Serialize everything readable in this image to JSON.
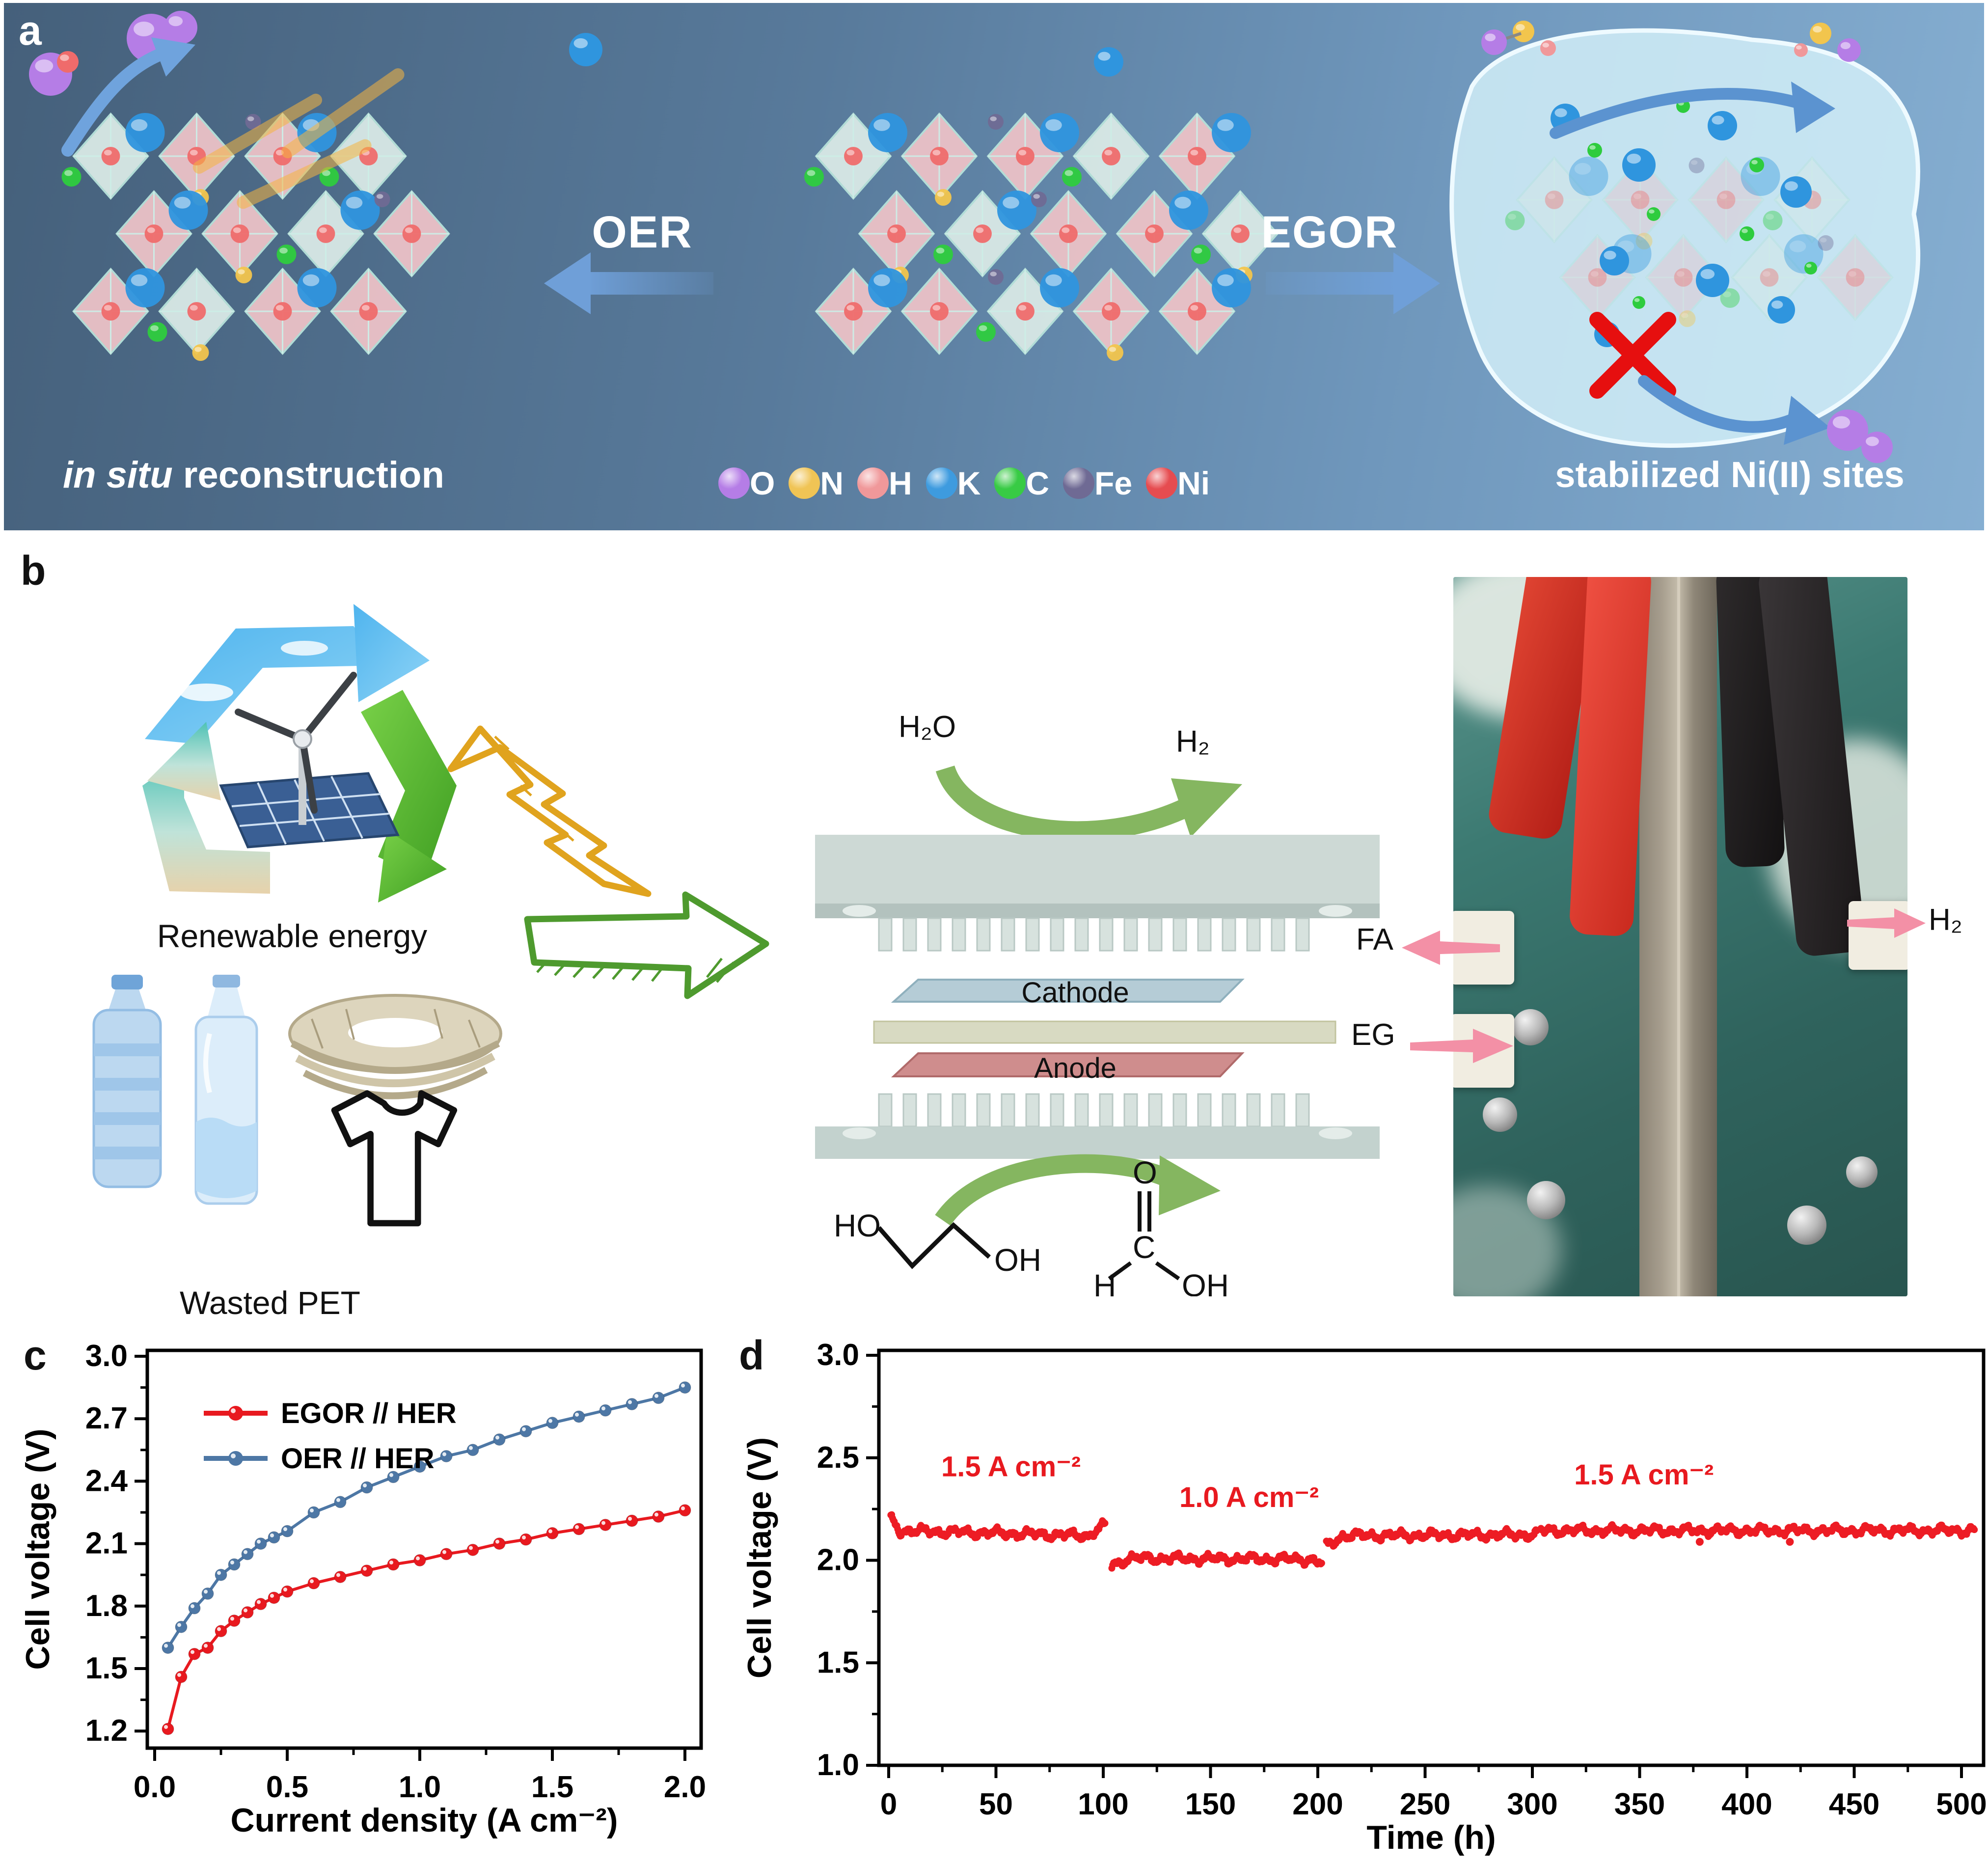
{
  "panel_a": {
    "label": "a",
    "oer_label": "OER",
    "egor_label": "EGOR",
    "left_caption_italic": "in situ",
    "left_caption_rest": " reconstruction",
    "right_caption": "stabilized Ni(II) sites",
    "atom_legend": [
      {
        "symbol": "O",
        "color": "#b57de6"
      },
      {
        "symbol": "N",
        "color": "#f0c455"
      },
      {
        "symbol": "H",
        "color": "#f0989a"
      },
      {
        "symbol": "K",
        "color": "#3e9bdf"
      },
      {
        "symbol": "C",
        "color": "#38cb45"
      },
      {
        "symbol": "Fe",
        "color": "#6f6a94"
      },
      {
        "symbol": "Ni",
        "color": "#e64c50"
      }
    ],
    "background_left": "#45607b",
    "background_right": "#86afd2"
  },
  "panel_b": {
    "label": "b",
    "renewable_caption": "Renewable energy",
    "pet_caption": "Wasted PET",
    "h2o_label": "H₂O",
    "h2_label": "H₂",
    "cathode_label": "Cathode",
    "anode_label": "Anode",
    "molecule_eg": {
      "left": "HO",
      "right": "OH"
    },
    "molecule_fa": {
      "o": "O",
      "c": "C",
      "h": "H",
      "oh": "OH"
    },
    "photo_labels": {
      "fa": "FA",
      "eg": "EG",
      "h2": "H₂"
    }
  },
  "panel_c": {
    "label": "c"
  },
  "panel_d": {
    "label": "d"
  },
  "colors": {
    "chart_red": "#e8191f",
    "chart_blue": "#4d77a5",
    "trace_red": "#ed1c24",
    "pink_arrow": "#f390a6",
    "green_arrow": "#7fb55e"
  },
  "chart_data": [
    {
      "id": "c",
      "type": "line",
      "xlabel": "Current density (A cm⁻²)",
      "ylabel": "Cell voltage (V)",
      "xlim": [
        0.0,
        2.06
      ],
      "ylim": [
        1.05,
        3.0
      ],
      "x_ticks": [
        0.0,
        0.5,
        1.0,
        1.5,
        2.0
      ],
      "y_ticks": [
        1.2,
        1.5,
        1.8,
        2.1,
        2.4,
        2.7,
        3.0
      ],
      "grid": false,
      "legend_position": "top-left",
      "x": [
        0.05,
        0.1,
        0.15,
        0.2,
        0.25,
        0.3,
        0.35,
        0.4,
        0.45,
        0.5,
        0.6,
        0.7,
        0.8,
        0.9,
        1.0,
        1.1,
        1.2,
        1.3,
        1.4,
        1.5,
        1.6,
        1.7,
        1.8,
        1.9,
        2.0
      ],
      "series": [
        {
          "name": "EGOR // HER",
          "color": "#e8191f",
          "y": [
            1.21,
            1.46,
            1.57,
            1.6,
            1.68,
            1.73,
            1.77,
            1.81,
            1.84,
            1.87,
            1.91,
            1.94,
            1.97,
            2.0,
            2.02,
            2.05,
            2.07,
            2.1,
            2.12,
            2.15,
            2.17,
            2.19,
            2.21,
            2.23,
            2.26
          ]
        },
        {
          "name": "OER // HER",
          "color": "#4d77a5",
          "y": [
            1.6,
            1.7,
            1.79,
            1.86,
            1.95,
            2.0,
            2.05,
            2.1,
            2.13,
            2.16,
            2.25,
            2.3,
            2.37,
            2.42,
            2.47,
            2.52,
            2.55,
            2.6,
            2.64,
            2.68,
            2.71,
            2.74,
            2.77,
            2.8,
            2.85
          ]
        }
      ]
    },
    {
      "id": "d",
      "type": "scatter",
      "xlabel": "Time (h)",
      "ylabel": "Cell voltage (V)",
      "xlim": [
        0,
        510
      ],
      "ylim": [
        1.0,
        3.0
      ],
      "x_ticks": [
        0,
        50,
        100,
        150,
        200,
        250,
        300,
        350,
        400,
        450,
        500
      ],
      "y_ticks": [
        1.0,
        1.5,
        2.0,
        2.5,
        3.0
      ],
      "grid": false,
      "color": "#ed1c24",
      "annotations": [
        {
          "text": "1.5 A cm⁻²",
          "t": 57,
          "v": 2.41
        },
        {
          "text": "1.0 A cm⁻²",
          "t": 168,
          "v": 2.26
        },
        {
          "text": "1.5 A cm⁻²",
          "t": 352,
          "v": 2.37
        }
      ],
      "segments": [
        {
          "t0": 1,
          "t1": 5,
          "v0": 2.2,
          "v1": 2.15
        },
        {
          "t0": 5,
          "t1": 94,
          "v0": 2.145,
          "v1": 2.12
        },
        {
          "t0": 94,
          "t1": 101,
          "v0": 2.13,
          "v1": 2.17
        },
        {
          "t0": 104,
          "t1": 112,
          "v0": 1.975,
          "v1": 2.01
        },
        {
          "t0": 112,
          "t1": 197,
          "v0": 2.01,
          "v1": 2.005
        },
        {
          "t0": 197,
          "t1": 202,
          "v0": 2.0,
          "v1": 1.985
        },
        {
          "t0": 204,
          "t1": 212,
          "v0": 2.07,
          "v1": 2.12
        },
        {
          "t0": 212,
          "t1": 302,
          "v0": 2.12,
          "v1": 2.125
        },
        {
          "t0": 304,
          "t1": 506,
          "v0": 2.145,
          "v1": 2.145
        }
      ],
      "outliers": [
        {
          "t": 378,
          "v": 2.09
        },
        {
          "t": 420,
          "v": 2.09
        }
      ]
    }
  ]
}
